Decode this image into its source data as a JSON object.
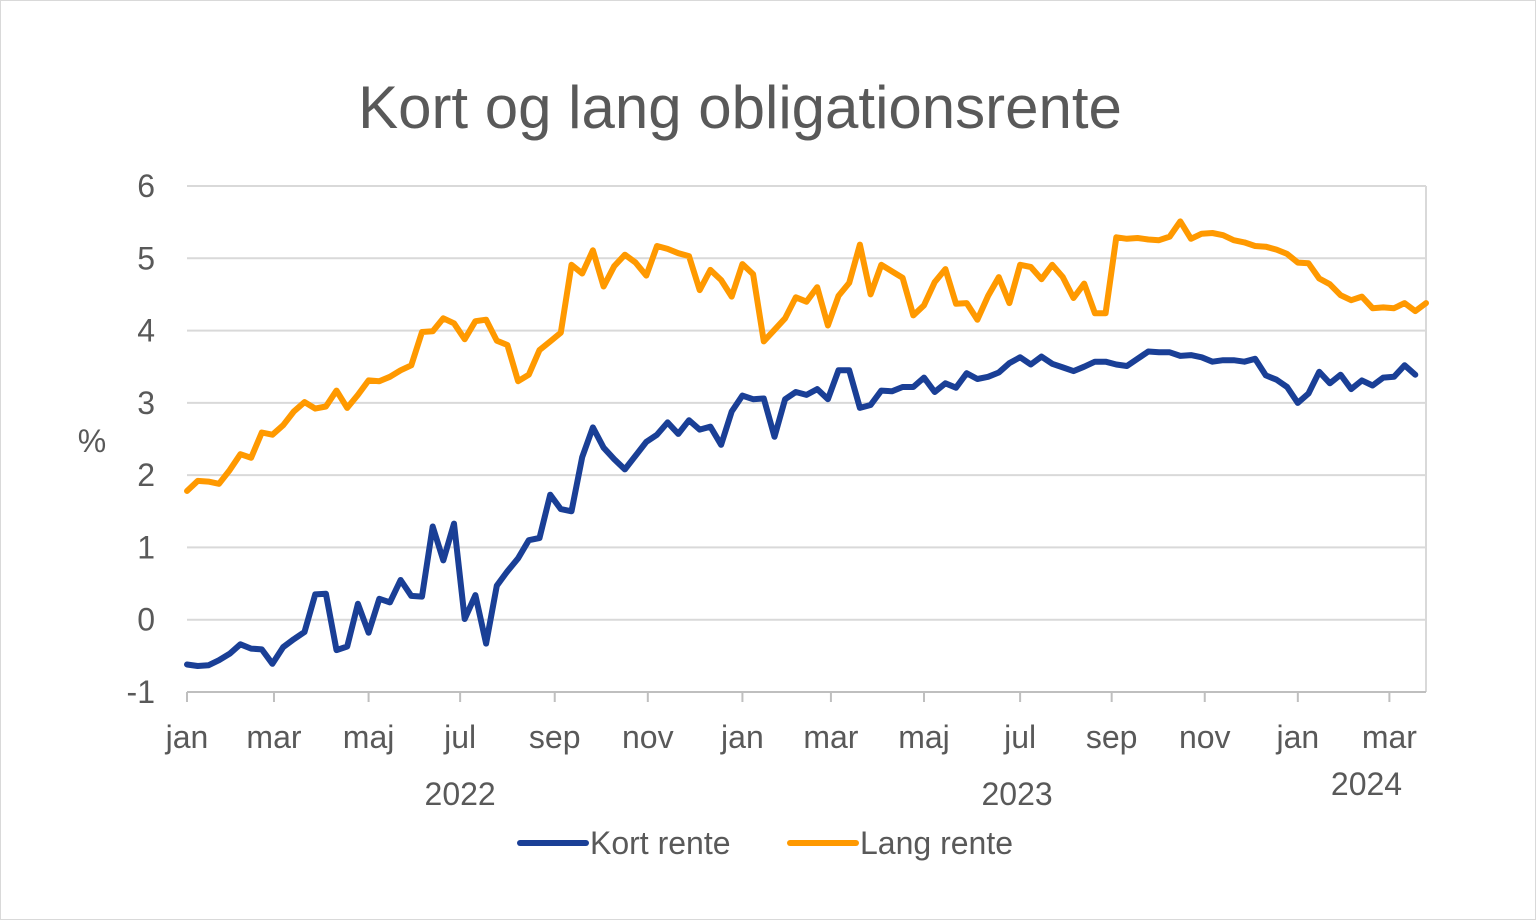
{
  "chart_data": {
    "type": "line",
    "title": "Kort og lang obligationsrente",
    "xlabel": "",
    "ylabel": "%",
    "ylim": [
      -1,
      6
    ],
    "yticks": [
      "-1",
      "0",
      "1",
      "2",
      "3",
      "4",
      "5",
      "6"
    ],
    "grid": true,
    "legend_position": "bottom",
    "x_month_ticks": [
      {
        "label": "jan",
        "date": "2022-01-03"
      },
      {
        "label": "mar",
        "date": "2022-03-01"
      },
      {
        "label": "maj",
        "date": "2022-05-02"
      },
      {
        "label": "jul",
        "date": "2022-07-01"
      },
      {
        "label": "sep",
        "date": "2022-09-01"
      },
      {
        "label": "nov",
        "date": "2022-11-01"
      },
      {
        "label": "jan",
        "date": "2023-01-02"
      },
      {
        "label": "mar",
        "date": "2023-03-01"
      },
      {
        "label": "maj",
        "date": "2023-05-01"
      },
      {
        "label": "jul",
        "date": "2023-07-03"
      },
      {
        "label": "sep",
        "date": "2023-09-01"
      },
      {
        "label": "nov",
        "date": "2023-11-01"
      },
      {
        "label": "jan",
        "date": "2024-01-01"
      },
      {
        "label": "mar",
        "date": "2024-03-01"
      }
    ],
    "x_year_labels": [
      {
        "label": "2022",
        "date": "2022-07-01"
      },
      {
        "label": "2023",
        "date": "2023-07-01"
      },
      {
        "label": "2024",
        "date": "2024-02-15"
      }
    ],
    "series": [
      {
        "name": "Kort rente",
        "color": "#1a3f96",
        "points": [
          [
            "2022-01-03",
            -0.62
          ],
          [
            "2022-01-10",
            -0.64
          ],
          [
            "2022-01-17",
            -0.63
          ],
          [
            "2022-01-24",
            -0.56
          ],
          [
            "2022-01-31",
            -0.47
          ],
          [
            "2022-02-07",
            -0.34
          ],
          [
            "2022-02-14",
            -0.4
          ],
          [
            "2022-02-21",
            -0.41
          ],
          [
            "2022-02-28",
            -0.61
          ],
          [
            "2022-03-07",
            -0.38
          ],
          [
            "2022-03-14",
            -0.27
          ],
          [
            "2022-03-21",
            -0.17
          ],
          [
            "2022-03-28",
            0.35
          ],
          [
            "2022-04-04",
            0.36
          ],
          [
            "2022-04-11",
            -0.42
          ],
          [
            "2022-04-18",
            -0.37
          ],
          [
            "2022-04-25",
            0.22
          ],
          [
            "2022-05-02",
            -0.18
          ],
          [
            "2022-05-09",
            0.29
          ],
          [
            "2022-05-16",
            0.24
          ],
          [
            "2022-05-23",
            0.55
          ],
          [
            "2022-05-30",
            0.33
          ],
          [
            "2022-06-06",
            0.32
          ],
          [
            "2022-06-13",
            1.29
          ],
          [
            "2022-06-20",
            0.82
          ],
          [
            "2022-06-27",
            1.33
          ],
          [
            "2022-07-04",
            0.01
          ],
          [
            "2022-07-11",
            0.34
          ],
          [
            "2022-07-18",
            -0.33
          ],
          [
            "2022-07-25",
            0.47
          ],
          [
            "2022-08-01",
            0.67
          ],
          [
            "2022-08-08",
            0.85
          ],
          [
            "2022-08-15",
            1.1
          ],
          [
            "2022-08-22",
            1.13
          ],
          [
            "2022-08-29",
            1.73
          ],
          [
            "2022-09-05",
            1.53
          ],
          [
            "2022-09-12",
            1.5
          ],
          [
            "2022-09-19",
            2.25
          ],
          [
            "2022-09-26",
            2.66
          ],
          [
            "2022-10-03",
            2.38
          ],
          [
            "2022-10-10",
            2.22
          ],
          [
            "2022-10-17",
            2.08
          ],
          [
            "2022-10-24",
            2.27
          ],
          [
            "2022-10-31",
            2.46
          ],
          [
            "2022-11-07",
            2.56
          ],
          [
            "2022-11-14",
            2.73
          ],
          [
            "2022-11-21",
            2.57
          ],
          [
            "2022-11-28",
            2.76
          ],
          [
            "2022-12-05",
            2.63
          ],
          [
            "2022-12-12",
            2.67
          ],
          [
            "2022-12-19",
            2.42
          ],
          [
            "2022-12-26",
            2.88
          ],
          [
            "2023-01-02",
            3.1
          ],
          [
            "2023-01-09",
            3.05
          ],
          [
            "2023-01-16",
            3.06
          ],
          [
            "2023-01-23",
            2.53
          ],
          [
            "2023-01-30",
            3.05
          ],
          [
            "2023-02-06",
            3.15
          ],
          [
            "2023-02-13",
            3.11
          ],
          [
            "2023-02-20",
            3.19
          ],
          [
            "2023-02-27",
            3.05
          ],
          [
            "2023-03-06",
            3.45
          ],
          [
            "2023-03-13",
            3.45
          ],
          [
            "2023-03-20",
            2.93
          ],
          [
            "2023-03-27",
            2.97
          ],
          [
            "2023-04-03",
            3.17
          ],
          [
            "2023-04-10",
            3.16
          ],
          [
            "2023-04-17",
            3.22
          ],
          [
            "2023-04-24",
            3.22
          ],
          [
            "2023-05-01",
            3.35
          ],
          [
            "2023-05-08",
            3.15
          ],
          [
            "2023-05-15",
            3.27
          ],
          [
            "2023-05-22",
            3.21
          ],
          [
            "2023-05-29",
            3.41
          ],
          [
            "2023-06-05",
            3.33
          ],
          [
            "2023-06-12",
            3.36
          ],
          [
            "2023-06-19",
            3.42
          ],
          [
            "2023-06-26",
            3.55
          ],
          [
            "2023-07-03",
            3.63
          ],
          [
            "2023-07-10",
            3.53
          ],
          [
            "2023-07-17",
            3.64
          ],
          [
            "2023-07-24",
            3.54
          ],
          [
            "2023-07-31",
            3.49
          ],
          [
            "2023-08-07",
            3.44
          ],
          [
            "2023-08-14",
            3.5
          ],
          [
            "2023-08-21",
            3.57
          ],
          [
            "2023-08-28",
            3.57
          ],
          [
            "2023-09-04",
            3.53
          ],
          [
            "2023-09-11",
            3.51
          ],
          [
            "2023-09-18",
            3.61
          ],
          [
            "2023-09-25",
            3.71
          ],
          [
            "2023-10-02",
            3.7
          ],
          [
            "2023-10-09",
            3.7
          ],
          [
            "2023-10-16",
            3.65
          ],
          [
            "2023-10-23",
            3.66
          ],
          [
            "2023-10-30",
            3.63
          ],
          [
            "2023-11-06",
            3.57
          ],
          [
            "2023-11-13",
            3.59
          ],
          [
            "2023-11-20",
            3.59
          ],
          [
            "2023-11-27",
            3.57
          ],
          [
            "2023-12-04",
            3.61
          ],
          [
            "2023-12-11",
            3.38
          ],
          [
            "2023-12-18",
            3.32
          ],
          [
            "2023-12-25",
            3.22
          ],
          [
            "2024-01-01",
            3.0
          ],
          [
            "2024-01-08",
            3.13
          ],
          [
            "2024-01-15",
            3.43
          ],
          [
            "2024-01-22",
            3.27
          ],
          [
            "2024-01-29",
            3.39
          ],
          [
            "2024-02-05",
            3.19
          ],
          [
            "2024-02-12",
            3.31
          ],
          [
            "2024-02-19",
            3.24
          ],
          [
            "2024-02-26",
            3.35
          ],
          [
            "2024-03-04",
            3.36
          ],
          [
            "2024-03-11",
            3.52
          ],
          [
            "2024-03-18",
            3.39
          ]
        ]
      },
      {
        "name": "Lang rente",
        "color": "#ff9900",
        "points": [
          [
            "2022-01-03",
            1.78
          ],
          [
            "2022-01-10",
            1.92
          ],
          [
            "2022-01-17",
            1.91
          ],
          [
            "2022-01-24",
            1.88
          ],
          [
            "2022-01-31",
            2.07
          ],
          [
            "2022-02-07",
            2.29
          ],
          [
            "2022-02-14",
            2.24
          ],
          [
            "2022-02-21",
            2.59
          ],
          [
            "2022-02-28",
            2.56
          ],
          [
            "2022-03-07",
            2.69
          ],
          [
            "2022-03-14",
            2.88
          ],
          [
            "2022-03-21",
            3.01
          ],
          [
            "2022-03-28",
            2.92
          ],
          [
            "2022-04-04",
            2.95
          ],
          [
            "2022-04-11",
            3.17
          ],
          [
            "2022-04-18",
            2.93
          ],
          [
            "2022-04-25",
            3.11
          ],
          [
            "2022-05-02",
            3.31
          ],
          [
            "2022-05-09",
            3.3
          ],
          [
            "2022-05-16",
            3.36
          ],
          [
            "2022-05-23",
            3.45
          ],
          [
            "2022-05-30",
            3.52
          ],
          [
            "2022-06-06",
            3.98
          ],
          [
            "2022-06-13",
            3.99
          ],
          [
            "2022-06-20",
            4.17
          ],
          [
            "2022-06-27",
            4.1
          ],
          [
            "2022-07-04",
            3.88
          ],
          [
            "2022-07-11",
            4.13
          ],
          [
            "2022-07-18",
            4.15
          ],
          [
            "2022-07-25",
            3.86
          ],
          [
            "2022-08-01",
            3.8
          ],
          [
            "2022-08-08",
            3.3
          ],
          [
            "2022-08-15",
            3.39
          ],
          [
            "2022-08-22",
            3.73
          ],
          [
            "2022-08-29",
            3.85
          ],
          [
            "2022-09-05",
            3.97
          ],
          [
            "2022-09-12",
            4.91
          ],
          [
            "2022-09-19",
            4.79
          ],
          [
            "2022-09-26",
            5.11
          ],
          [
            "2022-10-03",
            4.61
          ],
          [
            "2022-10-10",
            4.89
          ],
          [
            "2022-10-17",
            5.05
          ],
          [
            "2022-10-24",
            4.94
          ],
          [
            "2022-10-31",
            4.76
          ],
          [
            "2022-11-07",
            5.17
          ],
          [
            "2022-11-14",
            5.13
          ],
          [
            "2022-11-21",
            5.07
          ],
          [
            "2022-11-28",
            5.03
          ],
          [
            "2022-12-05",
            4.56
          ],
          [
            "2022-12-12",
            4.84
          ],
          [
            "2022-12-19",
            4.7
          ],
          [
            "2022-12-26",
            4.47
          ],
          [
            "2023-01-02",
            4.92
          ],
          [
            "2023-01-09",
            4.78
          ],
          [
            "2023-01-16",
            3.85
          ],
          [
            "2023-01-23",
            4.01
          ],
          [
            "2023-01-30",
            4.17
          ],
          [
            "2023-02-06",
            4.46
          ],
          [
            "2023-02-13",
            4.4
          ],
          [
            "2023-02-20",
            4.6
          ],
          [
            "2023-02-27",
            4.07
          ],
          [
            "2023-03-06",
            4.48
          ],
          [
            "2023-03-13",
            4.66
          ],
          [
            "2023-03-20",
            5.19
          ],
          [
            "2023-03-27",
            4.5
          ],
          [
            "2023-04-03",
            4.91
          ],
          [
            "2023-04-10",
            4.82
          ],
          [
            "2023-04-17",
            4.73
          ],
          [
            "2023-04-24",
            4.21
          ],
          [
            "2023-05-01",
            4.35
          ],
          [
            "2023-05-08",
            4.67
          ],
          [
            "2023-05-15",
            4.85
          ],
          [
            "2023-05-22",
            4.37
          ],
          [
            "2023-05-29",
            4.38
          ],
          [
            "2023-06-05",
            4.15
          ],
          [
            "2023-06-12",
            4.48
          ],
          [
            "2023-06-19",
            4.74
          ],
          [
            "2023-06-26",
            4.38
          ],
          [
            "2023-07-03",
            4.91
          ],
          [
            "2023-07-10",
            4.88
          ],
          [
            "2023-07-17",
            4.71
          ],
          [
            "2023-07-24",
            4.91
          ],
          [
            "2023-07-31",
            4.74
          ],
          [
            "2023-08-07",
            4.45
          ],
          [
            "2023-08-14",
            4.65
          ],
          [
            "2023-08-21",
            4.24
          ],
          [
            "2023-08-28",
            4.24
          ],
          [
            "2023-09-04",
            5.29
          ],
          [
            "2023-09-11",
            5.27
          ],
          [
            "2023-09-18",
            5.28
          ],
          [
            "2023-09-25",
            5.26
          ],
          [
            "2023-10-02",
            5.25
          ],
          [
            "2023-10-09",
            5.3
          ],
          [
            "2023-10-16",
            5.51
          ],
          [
            "2023-10-23",
            5.27
          ],
          [
            "2023-10-30",
            5.34
          ],
          [
            "2023-11-06",
            5.35
          ],
          [
            "2023-11-13",
            5.32
          ],
          [
            "2023-11-20",
            5.25
          ],
          [
            "2023-11-27",
            5.22
          ],
          [
            "2023-12-04",
            5.17
          ],
          [
            "2023-12-11",
            5.16
          ],
          [
            "2023-12-18",
            5.12
          ],
          [
            "2023-12-25",
            5.06
          ],
          [
            "2024-01-01",
            4.94
          ],
          [
            "2024-01-08",
            4.93
          ],
          [
            "2024-01-15",
            4.72
          ],
          [
            "2024-01-22",
            4.64
          ],
          [
            "2024-01-29",
            4.49
          ],
          [
            "2024-02-05",
            4.42
          ],
          [
            "2024-02-12",
            4.47
          ],
          [
            "2024-02-19",
            4.31
          ],
          [
            "2024-02-26",
            4.32
          ],
          [
            "2024-03-04",
            4.31
          ],
          [
            "2024-03-11",
            4.38
          ],
          [
            "2024-03-18",
            4.27
          ],
          [
            "2024-03-25",
            4.38
          ]
        ]
      }
    ]
  }
}
